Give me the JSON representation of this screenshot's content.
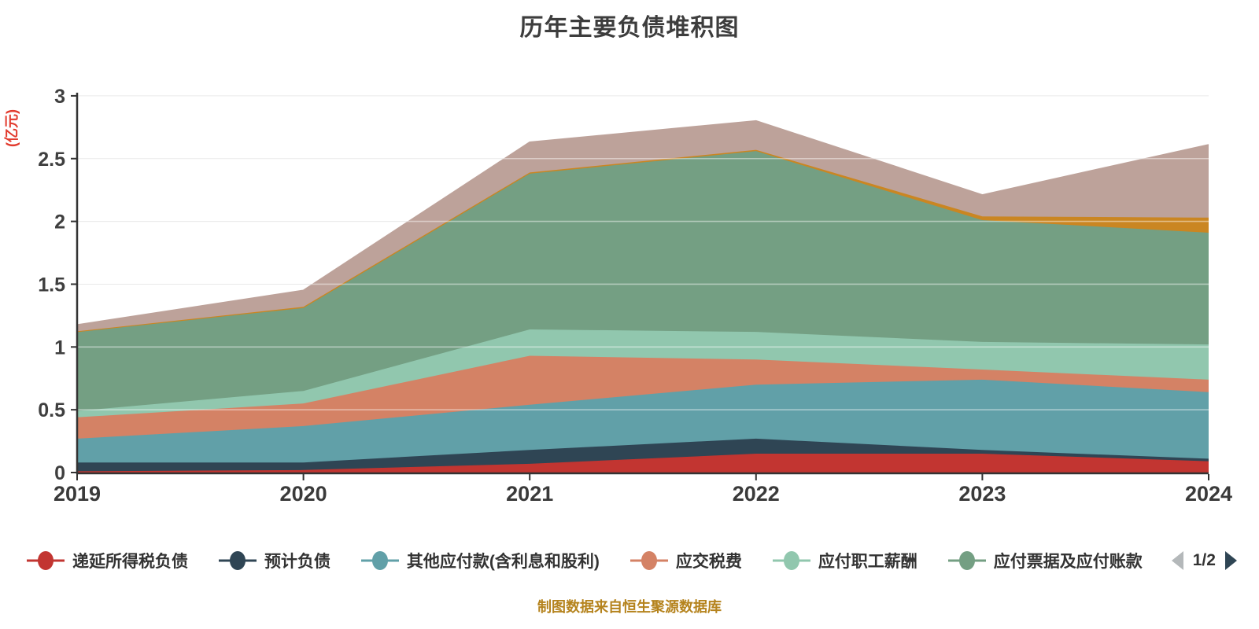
{
  "title": "历年主要负债堆积图",
  "caption": "制图数据来自恒生聚源数据库",
  "y_axis": {
    "name": "(亿元)",
    "ticks": [
      0,
      0.5,
      1,
      1.5,
      2,
      2.5,
      3
    ],
    "min": 0,
    "max": 3
  },
  "x_axis": {
    "labels": [
      "2019",
      "2020",
      "2021",
      "2022",
      "2023",
      "2024"
    ]
  },
  "legend": {
    "items": [
      {
        "label": "递延所得税负债",
        "color": "#c23531"
      },
      {
        "label": "预计负债",
        "color": "#2f4554"
      },
      {
        "label": "其他应付款(含利息和股利)",
        "color": "#61a0a8"
      },
      {
        "label": "应交税费",
        "color": "#d48265"
      },
      {
        "label": "应付职工薪酬",
        "color": "#91c7ae"
      },
      {
        "label": "应付票据及应付账款",
        "color": "#749f83"
      }
    ],
    "pagination": {
      "label": "1/2",
      "prev_enabled": false,
      "next_enabled": true
    }
  },
  "chart_data": {
    "type": "area",
    "stacked": true,
    "x": [
      "2019",
      "2020",
      "2021",
      "2022",
      "2023",
      "2024"
    ],
    "title": "历年主要负债堆积图",
    "xlabel": "",
    "ylabel": "(亿元)",
    "ylim": [
      0,
      3
    ],
    "grid": true,
    "legend_position": "bottom",
    "series": [
      {
        "name": "递延所得税负债",
        "color": "#c23531",
        "values": [
          0.01,
          0.02,
          0.07,
          0.15,
          0.15,
          0.09
        ]
      },
      {
        "name": "预计负债",
        "color": "#2f4554",
        "values": [
          0.07,
          0.06,
          0.11,
          0.12,
          0.03,
          0.02
        ]
      },
      {
        "name": "其他应付款(含利息和股利)",
        "color": "#61a0a8",
        "values": [
          0.19,
          0.29,
          0.36,
          0.43,
          0.56,
          0.53
        ]
      },
      {
        "name": "应交税费",
        "color": "#d48265",
        "values": [
          0.17,
          0.18,
          0.39,
          0.2,
          0.08,
          0.1
        ]
      },
      {
        "name": "应付职工薪酬",
        "color": "#91c7ae",
        "values": [
          0.05,
          0.1,
          0.21,
          0.22,
          0.22,
          0.28
        ]
      },
      {
        "name": "应付票据及应付账款",
        "color": "#749f83",
        "values": [
          0.63,
          0.66,
          1.24,
          1.44,
          0.97,
          0.89
        ]
      },
      {
        "name": "",
        "legend_on_page_2": true,
        "color": "#ca8622",
        "values": [
          0.005,
          0.01,
          0.01,
          0.01,
          0.03,
          0.12
        ]
      },
      {
        "name": "",
        "legend_on_page_2": true,
        "color": "#bda29a",
        "values": [
          0.05,
          0.13,
          0.24,
          0.23,
          0.17,
          0.58
        ]
      }
    ]
  }
}
